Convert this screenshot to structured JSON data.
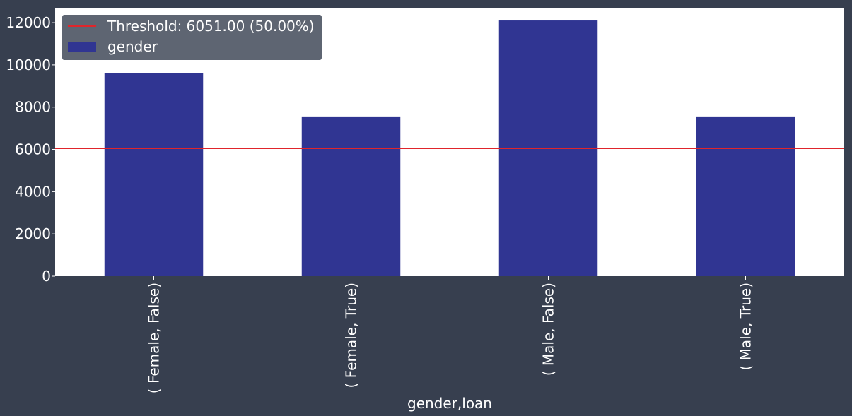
{
  "colors": {
    "background": "#373f4f",
    "plot_area": "#ffffff",
    "bar": "#303592",
    "threshold": "#e0252b",
    "legend_bg": "#5e6572",
    "text": "#ffffff"
  },
  "chart_data": {
    "type": "bar",
    "categories": [
      "( Female, False)",
      "( Female, True)",
      "( Male, False)",
      "( Male, True)"
    ],
    "series": [
      {
        "name": "gender",
        "values": [
          9600,
          7560,
          12102,
          7560
        ]
      }
    ],
    "threshold": {
      "value": 6051,
      "label": "Threshold: 6051.00 (50.00%)"
    },
    "xlabel": "gender,loan",
    "ylabel": "",
    "ylim": [
      0,
      12705
    ],
    "yticks": [
      0,
      2000,
      4000,
      6000,
      8000,
      10000,
      12000
    ],
    "legend": {
      "position": "top-left",
      "entries": [
        "Threshold: 6051.00 (50.00%)",
        "gender"
      ]
    },
    "grid": false
  }
}
